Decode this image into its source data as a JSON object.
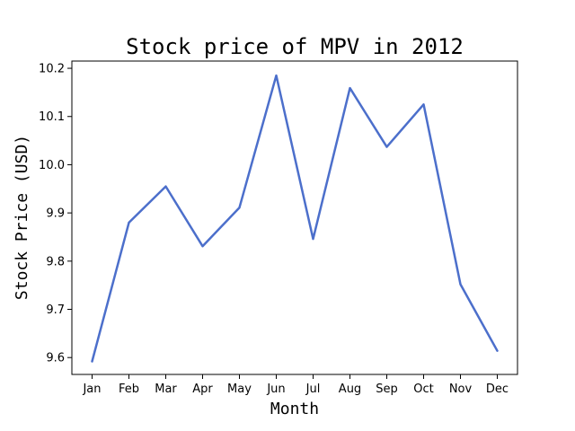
{
  "chart_data": {
    "type": "line",
    "title": "Stock price of MPV in 2012",
    "xlabel": "Month",
    "ylabel": "Stock Price (USD)",
    "categories": [
      "Jan",
      "Feb",
      "Mar",
      "Apr",
      "May",
      "Jun",
      "Jul",
      "Aug",
      "Sep",
      "Oct",
      "Nov",
      "Dec"
    ],
    "series": [
      {
        "name": "MPV",
        "color": "#4c6fcb",
        "values": [
          9.592,
          9.88,
          9.955,
          9.831,
          9.911,
          10.185,
          9.846,
          10.159,
          10.037,
          10.125,
          9.752,
          9.614
        ]
      }
    ],
    "ylim": [
      9.565,
      10.215
    ],
    "yticks": [
      9.6,
      9.7,
      9.8,
      9.9,
      10.0,
      10.1,
      10.2
    ],
    "ytick_labels": [
      "9.6",
      "9.7",
      "9.8",
      "9.9",
      "10.0",
      "10.1",
      "10.2"
    ],
    "grid": false,
    "legend": "none"
  }
}
